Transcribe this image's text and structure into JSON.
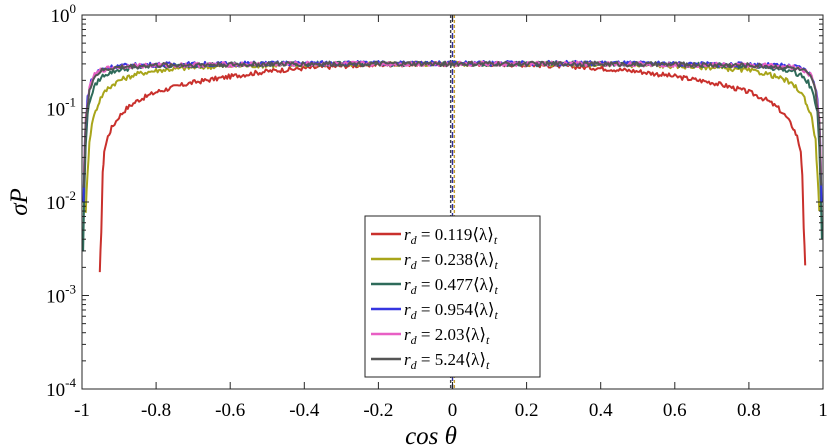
{
  "chart_data": {
    "type": "line",
    "title": "",
    "xlabel": "cos θ",
    "ylabel": "σP",
    "xlim": [
      -1,
      1
    ],
    "ylim": [
      0.0001,
      1
    ],
    "yscale": "log",
    "x_ticks": [
      -1,
      -0.8,
      -0.6,
      -0.4,
      -0.2,
      0,
      0.2,
      0.4,
      0.6,
      0.8,
      1
    ],
    "x_tick_labels": [
      "-1",
      "-0.8",
      "-0.6",
      "-0.4",
      "-0.2",
      "0",
      "0.2",
      "0.4",
      "0.6",
      "0.8",
      "1"
    ],
    "y_tick_labels": [
      {
        "base": "10",
        "exp": "-4",
        "value": 0.0001
      },
      {
        "base": "10",
        "exp": "-3",
        "value": 0.001
      },
      {
        "base": "10",
        "exp": "-2",
        "value": 0.01
      },
      {
        "base": "10",
        "exp": "-1",
        "value": 0.1
      },
      {
        "base": "10",
        "exp": "0",
        "value": 1
      }
    ],
    "grid": false,
    "legend_position": "bottom-center",
    "vertical_reference_lines": [
      {
        "x": -0.005,
        "color": "#444444"
      },
      {
        "x": 0.0,
        "color": "#2f2f9a"
      },
      {
        "x": 0.005,
        "color": "#c8a030"
      }
    ],
    "series": [
      {
        "name": "r_d = 0.119⟨λ⟩_t",
        "legend_lhs": "r",
        "legend_sub": "d",
        "legend_mid": " = 0.119⟨λ⟩",
        "legend_sub2": "t",
        "color": "#c9302c",
        "x": [
          -0.952,
          -0.948,
          -0.944,
          -0.94,
          -0.93,
          -0.92,
          -0.9,
          -0.88,
          -0.85,
          -0.8,
          -0.75,
          -0.7,
          -0.6,
          -0.5,
          -0.4,
          -0.3,
          -0.2,
          -0.1,
          0.0,
          0.1,
          0.2,
          0.3,
          0.4,
          0.5,
          0.6,
          0.7,
          0.75,
          0.8,
          0.85,
          0.88,
          0.9,
          0.92,
          0.93,
          0.94,
          0.944,
          0.948,
          0.952
        ],
        "y": [
          0.0017,
          0.005,
          0.02,
          0.035,
          0.05,
          0.062,
          0.082,
          0.1,
          0.122,
          0.15,
          0.17,
          0.19,
          0.22,
          0.25,
          0.27,
          0.285,
          0.295,
          0.3,
          0.3,
          0.3,
          0.295,
          0.285,
          0.27,
          0.25,
          0.22,
          0.19,
          0.17,
          0.15,
          0.122,
          0.1,
          0.082,
          0.062,
          0.05,
          0.035,
          0.02,
          0.005,
          0.0021
        ]
      },
      {
        "name": "r_d = 0.238⟨λ⟩_t",
        "legend_lhs": "r",
        "legend_sub": "d",
        "legend_mid": " = 0.238⟨λ⟩",
        "legend_sub2": "t",
        "color": "#a8a51a",
        "x": [
          -0.99,
          -0.985,
          -0.98,
          -0.97,
          -0.96,
          -0.95,
          -0.93,
          -0.9,
          -0.85,
          -0.8,
          -0.7,
          -0.6,
          -0.4,
          -0.2,
          0.0,
          0.2,
          0.4,
          0.6,
          0.7,
          0.8,
          0.85,
          0.9,
          0.93,
          0.95,
          0.96,
          0.97,
          0.98,
          0.985,
          0.99
        ],
        "y": [
          0.008,
          0.02,
          0.045,
          0.08,
          0.1,
          0.13,
          0.165,
          0.2,
          0.235,
          0.255,
          0.275,
          0.285,
          0.295,
          0.3,
          0.3,
          0.3,
          0.295,
          0.285,
          0.275,
          0.255,
          0.235,
          0.2,
          0.165,
          0.13,
          0.1,
          0.08,
          0.045,
          0.02,
          0.008
        ]
      },
      {
        "name": "r_d = 0.477⟨λ⟩_t",
        "legend_lhs": "r",
        "legend_sub": "d",
        "legend_mid": " = 0.477⟨λ⟩",
        "legend_sub2": "t",
        "color": "#2e6b5a",
        "x": [
          -0.997,
          -0.994,
          -0.99,
          -0.985,
          -0.975,
          -0.96,
          -0.94,
          -0.9,
          -0.85,
          -0.8,
          -0.6,
          -0.4,
          -0.2,
          0.0,
          0.2,
          0.4,
          0.6,
          0.8,
          0.85,
          0.9,
          0.94,
          0.96,
          0.975,
          0.985,
          0.99,
          0.994,
          0.997
        ],
        "y": [
          0.003,
          0.012,
          0.04,
          0.09,
          0.14,
          0.19,
          0.23,
          0.26,
          0.275,
          0.285,
          0.295,
          0.3,
          0.3,
          0.3,
          0.3,
          0.3,
          0.295,
          0.285,
          0.275,
          0.26,
          0.23,
          0.19,
          0.14,
          0.09,
          0.04,
          0.012,
          0.004
        ]
      },
      {
        "name": "r_d = 0.954⟨λ⟩_t",
        "legend_lhs": "r",
        "legend_sub": "d",
        "legend_mid": " = 0.954⟨λ⟩",
        "legend_sub2": "t",
        "color": "#3535e0",
        "x": [
          -0.996,
          -0.992,
          -0.985,
          -0.975,
          -0.96,
          -0.94,
          -0.9,
          -0.8,
          -0.6,
          -0.4,
          -0.2,
          0.0,
          0.2,
          0.4,
          0.6,
          0.8,
          0.9,
          0.94,
          0.96,
          0.975,
          0.985,
          0.992,
          0.996
        ],
        "y": [
          0.01,
          0.05,
          0.13,
          0.2,
          0.245,
          0.27,
          0.285,
          0.295,
          0.3,
          0.305,
          0.305,
          0.305,
          0.305,
          0.305,
          0.3,
          0.295,
          0.285,
          0.27,
          0.245,
          0.2,
          0.13,
          0.05,
          0.01
        ]
      },
      {
        "name": "r_d = 2.03⟨λ⟩_t",
        "legend_lhs": "r",
        "legend_sub": "d",
        "legend_mid": " = 2.03⟨λ⟩",
        "legend_sub2": "t",
        "color": "#e85fc4",
        "x": [
          -0.995,
          -0.99,
          -0.98,
          -0.97,
          -0.95,
          -0.92,
          -0.88,
          -0.8,
          -0.6,
          -0.4,
          -0.2,
          0.0,
          0.2,
          0.4,
          0.6,
          0.8,
          0.88,
          0.92,
          0.95,
          0.97,
          0.98,
          0.99,
          0.995
        ],
        "y": [
          0.02,
          0.08,
          0.16,
          0.22,
          0.255,
          0.275,
          0.285,
          0.29,
          0.295,
          0.3,
          0.3,
          0.3,
          0.3,
          0.3,
          0.295,
          0.29,
          0.285,
          0.275,
          0.255,
          0.22,
          0.16,
          0.08,
          0.02
        ]
      },
      {
        "name": "r_d = 5.24⟨λ⟩_t",
        "legend_lhs": "r",
        "legend_sub": "d",
        "legend_mid": " = 5.24⟨λ⟩",
        "legend_sub2": "t",
        "color": "#555555",
        "x": [
          -0.995,
          -0.99,
          -0.98,
          -0.97,
          -0.95,
          -0.92,
          -0.88,
          -0.8,
          -0.6,
          -0.4,
          -0.2,
          0.0,
          0.2,
          0.4,
          0.6,
          0.8,
          0.88,
          0.92,
          0.95,
          0.97,
          0.98,
          0.99,
          0.995
        ],
        "y": [
          0.015,
          0.07,
          0.15,
          0.21,
          0.25,
          0.27,
          0.28,
          0.29,
          0.295,
          0.3,
          0.3,
          0.3,
          0.3,
          0.3,
          0.295,
          0.29,
          0.28,
          0.27,
          0.25,
          0.21,
          0.15,
          0.07,
          0.015
        ]
      }
    ]
  }
}
